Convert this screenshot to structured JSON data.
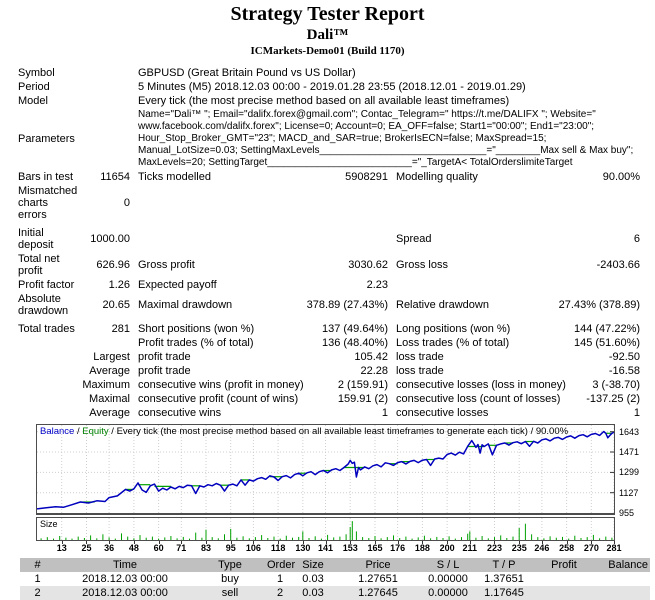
{
  "page": {
    "title": "Strategy Tester Report",
    "ea_name": "Dali™",
    "server": "ICMarkets-Demo01 (Build 1170)"
  },
  "info": {
    "symbol_label": "Symbol",
    "symbol": "GBPUSD (Great Britain Pound vs US Dollar)",
    "period_label": "Period",
    "period": "5 Minutes (M5) 2018.12.03 00:00 - 2019.01.28 23:55 (2018.12.01 - 2019.01.29)",
    "model_label": "Model",
    "model": "Every tick (the most precise method based on all available least timeframes)",
    "parameters_label": "Parameters",
    "parameters": "Name=\"Dali™ \"; Email=\"dalifx.forex@gmail.com\"; Contac_Telegram=\" https://t.me/DALIFX \"; Website=\" www.facebook.com/dalifx.forex\"; License=0; Account=0; EA_OFF=false; Start1=\"00:00\"; End1=\"23:00\"; Hour_Stop_Broker_GMT=\"23\"; MACD_and_SAR=true; BrokerIsECN=false; MaxSpread=15; Manual_LotSize=0.03; SettingMaxLevels______________________________=\"________Max sell & Max buy\"; MaxLevels=20; SettingTarget__________________________=\"_TargetA< TotalOrderslimiteTarget"
  },
  "stats": {
    "bars_label": "Bars in test",
    "bars": "11654",
    "ticks_label": "Ticks modelled",
    "ticks": "5908291",
    "quality_label": "Modelling quality",
    "quality": "90.00%",
    "mismatch_label": "Mismatched charts errors",
    "mismatch": "0",
    "deposit_label": "Initial deposit",
    "deposit": "1000.00",
    "spread_label": "Spread",
    "spread": "6",
    "netprofit_label": "Total net profit",
    "netprofit": "626.96",
    "grossprofit_label": "Gross profit",
    "grossprofit": "3030.62",
    "grossloss_label": "Gross loss",
    "grossloss": "-2403.66",
    "pf_label": "Profit factor",
    "pf": "1.26",
    "ep_label": "Expected payoff",
    "ep": "2.23",
    "absdd_label": "Absolute drawdown",
    "absdd": "20.65",
    "maxdd_label": "Maximal drawdown",
    "maxdd": "378.89 (27.43%)",
    "reldd_label": "Relative drawdown",
    "reldd": "27.43% (378.89)",
    "trades_label": "Total trades",
    "trades": "281",
    "short_label": "Short positions (won %)",
    "short": "137 (49.64%)",
    "long_label": "Long positions (won %)",
    "long": "144 (47.22%)",
    "ptrades_label": "Profit trades (% of total)",
    "ptrades": "136 (48.40%)",
    "ltrades_label": "Loss trades (% of total)",
    "ltrades": "145 (51.60%)",
    "largest_label": "Largest",
    "largest_profit_label": "profit trade",
    "largest_profit": "105.42",
    "largest_loss_label": "loss trade",
    "largest_loss": "-92.50",
    "avg_label": "Average",
    "avg_profit_label": "profit trade",
    "avg_profit": "22.28",
    "avg_loss_label": "loss trade",
    "avg_loss": "-16.58",
    "maximum_label": "Maximum",
    "maxwins_label": "consecutive wins (profit in money)",
    "maxwins": "2 (159.91)",
    "maxlosses_label": "consecutive losses (loss in money)",
    "maxlosses": "3 (-38.70)",
    "maximal_label": "Maximal",
    "maxprofit_label": "consecutive profit (count of wins)",
    "maxprofit": "159.91 (2)",
    "maxloss_label": "consecutive loss (count of losses)",
    "maxloss": "-137.25 (2)",
    "avgcw_label": "Average",
    "avgwins_label": "consecutive wins",
    "avgwins": "1",
    "avglosses_label": "consecutive losses",
    "avglosses": "1"
  },
  "chart_data": {
    "type": "line",
    "title": "Balance / Equity / Every tick (the most precise method based on all available least timeframes to generate each tick) / 90.00%",
    "legend": {
      "balance": "Balance",
      "sep1": " / ",
      "equity": "Equity",
      "rest": " / Every tick (the most precise method based on all available least timeframes to generate each tick) / 90.00%"
    },
    "xlim": [
      1,
      281
    ],
    "ylim": [
      955,
      1700
    ],
    "x_ticks": [
      13,
      25,
      36,
      48,
      60,
      71,
      83,
      95,
      106,
      118,
      130,
      141,
      153,
      165,
      176,
      188,
      200,
      211,
      223,
      235,
      246,
      258,
      270,
      281
    ],
    "y_ticks": [
      955,
      1127,
      1299,
      1471,
      1643
    ],
    "grid": true,
    "legend_position": "top-left",
    "series": [
      {
        "name": "Balance",
        "color": "#0000be"
      },
      {
        "name": "Equity",
        "color": "#00a000"
      }
    ],
    "balance_series": {
      "x": [
        1,
        5,
        10,
        14,
        18,
        22,
        26,
        30,
        34,
        36,
        40,
        44,
        46,
        48,
        50,
        52,
        54,
        56,
        58,
        60,
        62,
        64,
        66,
        68,
        70,
        72,
        74,
        76,
        78,
        80,
        82,
        84,
        86,
        88,
        90,
        92,
        94,
        96,
        98,
        100,
        102,
        104,
        106,
        108,
        110,
        112,
        114,
        116,
        118,
        120,
        122,
        124,
        126,
        128,
        130,
        132,
        134,
        136,
        138,
        140,
        142,
        144,
        146,
        148,
        150,
        152,
        153,
        154,
        155,
        156,
        157,
        158,
        160,
        162,
        164,
        166,
        168,
        170,
        172,
        174,
        176,
        178,
        180,
        182,
        184,
        186,
        188,
        190,
        192,
        194,
        196,
        198,
        200,
        202,
        204,
        206,
        208,
        210,
        211,
        212,
        213,
        214,
        215,
        216,
        217,
        218,
        220,
        222,
        224,
        226,
        228,
        230,
        232,
        234,
        236,
        238,
        240,
        242,
        244,
        246,
        248,
        250,
        252,
        254,
        256,
        258,
        260,
        262,
        264,
        266,
        268,
        270,
        272,
        274,
        276,
        277,
        278,
        279,
        280,
        281
      ],
      "y": [
        990,
        998,
        1008,
        1004,
        1025,
        1048,
        1040,
        1058,
        1052,
        1085,
        1100,
        1155,
        1140,
        1160,
        1210,
        1150,
        1130,
        1185,
        1200,
        1140,
        1165,
        1150,
        1175,
        1160,
        1180,
        1170,
        1190,
        1185,
        1120,
        1185,
        1175,
        1195,
        1185,
        1205,
        1190,
        1140,
        1190,
        1200,
        1185,
        1235,
        1190,
        1235,
        1225,
        1245,
        1255,
        1240,
        1270,
        1260,
        1230,
        1262,
        1272,
        1252,
        1280,
        1292,
        1270,
        1295,
        1305,
        1280,
        1305,
        1315,
        1295,
        1320,
        1330,
        1315,
        1340,
        1370,
        1400,
        1375,
        1385,
        1260,
        1340,
        1320,
        1345,
        1330,
        1355,
        1365,
        1345,
        1380,
        1372,
        1358,
        1382,
        1390,
        1370,
        1392,
        1400,
        1382,
        1402,
        1408,
        1358,
        1412,
        1420,
        1412,
        1450,
        1462,
        1445,
        1470,
        1455,
        1520,
        1545,
        1568,
        1540,
        1510,
        1535,
        1462,
        1532,
        1518,
        1540,
        1448,
        1528,
        1540,
        1548,
        1530,
        1550,
        1558,
        1542,
        1560,
        1520,
        1562,
        1548,
        1575,
        1582,
        1565,
        1588,
        1595,
        1578,
        1598,
        1608,
        1588,
        1610,
        1618,
        1600,
        1620,
        1628,
        1612,
        1645,
        1630,
        1592,
        1612,
        1630,
        1638
      ]
    },
    "equity_segments": [
      [
        22,
        29,
        1048
      ],
      [
        44,
        48,
        1155
      ],
      [
        50,
        56,
        1195
      ],
      [
        58,
        66,
        1180
      ],
      [
        76,
        80,
        1185
      ],
      [
        90,
        94,
        1190
      ],
      [
        100,
        104,
        1235
      ],
      [
        114,
        120,
        1262
      ],
      [
        128,
        132,
        1292
      ],
      [
        140,
        144,
        1315
      ],
      [
        150,
        160,
        1340
      ],
      [
        172,
        176,
        1372
      ],
      [
        178,
        182,
        1390
      ],
      [
        190,
        194,
        1408
      ],
      [
        210,
        218,
        1518
      ],
      [
        220,
        224,
        1528
      ],
      [
        228,
        232,
        1548
      ],
      [
        238,
        242,
        1560
      ],
      [
        277,
        280,
        1630
      ]
    ],
    "size_panel": {
      "label": "Size",
      "max": 0.7,
      "bars": [
        [
          3,
          0.06
        ],
        [
          6,
          0.1
        ],
        [
          9,
          0.05
        ],
        [
          12,
          0.14
        ],
        [
          15,
          0.08
        ],
        [
          18,
          0.05
        ],
        [
          21,
          0.12
        ],
        [
          24,
          0.07
        ],
        [
          27,
          0.16
        ],
        [
          30,
          0.06
        ],
        [
          33,
          0.2
        ],
        [
          36,
          0.09
        ],
        [
          39,
          0.05
        ],
        [
          42,
          0.23
        ],
        [
          45,
          0.12
        ],
        [
          48,
          0.06
        ],
        [
          51,
          0.17
        ],
        [
          54,
          0.08
        ],
        [
          57,
          0.12
        ],
        [
          60,
          0.05
        ],
        [
          63,
          0.09
        ],
        [
          66,
          0.14
        ],
        [
          69,
          0.06
        ],
        [
          72,
          0.11
        ],
        [
          75,
          0.05
        ],
        [
          78,
          0.26
        ],
        [
          81,
          0.08
        ],
        [
          83,
          0.36
        ],
        [
          86,
          0.1
        ],
        [
          89,
          0.06
        ],
        [
          92,
          0.2
        ],
        [
          95,
          0.39
        ],
        [
          98,
          0.08
        ],
        [
          101,
          0.13
        ],
        [
          104,
          0.06
        ],
        [
          107,
          0.1
        ],
        [
          110,
          0.17
        ],
        [
          113,
          0.07
        ],
        [
          116,
          0.12
        ],
        [
          119,
          0.05
        ],
        [
          122,
          0.15
        ],
        [
          125,
          0.08
        ],
        [
          128,
          0.11
        ],
        [
          130,
          0.3
        ],
        [
          133,
          0.07
        ],
        [
          136,
          0.13
        ],
        [
          139,
          0.05
        ],
        [
          142,
          0.18
        ],
        [
          145,
          0.09
        ],
        [
          148,
          0.12
        ],
        [
          151,
          0.2
        ],
        [
          153,
          0.45
        ],
        [
          154,
          0.66
        ],
        [
          156,
          0.3
        ],
        [
          159,
          0.1
        ],
        [
          162,
          0.07
        ],
        [
          165,
          0.14
        ],
        [
          168,
          0.06
        ],
        [
          171,
          0.1
        ],
        [
          174,
          0.16
        ],
        [
          177,
          0.07
        ],
        [
          180,
          0.12
        ],
        [
          183,
          0.05
        ],
        [
          186,
          0.09
        ],
        [
          189,
          0.15
        ],
        [
          192,
          0.06
        ],
        [
          195,
          0.11
        ],
        [
          198,
          0.07
        ],
        [
          201,
          0.13
        ],
        [
          204,
          0.05
        ],
        [
          207,
          0.1
        ],
        [
          210,
          0.22
        ],
        [
          211,
          0.3
        ],
        [
          214,
          0.08
        ],
        [
          217,
          0.14
        ],
        [
          220,
          0.06
        ],
        [
          223,
          0.1
        ],
        [
          226,
          0.16
        ],
        [
          229,
          0.07
        ],
        [
          232,
          0.12
        ],
        [
          235,
          0.42
        ],
        [
          238,
          0.57
        ],
        [
          241,
          0.2
        ],
        [
          244,
          0.1
        ],
        [
          247,
          0.06
        ],
        [
          250,
          0.13
        ],
        [
          253,
          0.08
        ],
        [
          256,
          0.11
        ],
        [
          259,
          0.05
        ],
        [
          262,
          0.15
        ],
        [
          265,
          0.07
        ],
        [
          268,
          0.1
        ],
        [
          271,
          0.18
        ],
        [
          274,
          0.06
        ],
        [
          277,
          0.12
        ],
        [
          280,
          0.08
        ]
      ]
    },
    "colors": {
      "balance": "#0000be",
      "equity": "#00a000",
      "size_bars": "#00a000",
      "grid": "#cfcfcf",
      "frame": "#4d4d4d"
    }
  },
  "trade_table": {
    "headers": [
      "#",
      "Time",
      "Type",
      "Order",
      "Size",
      "Price",
      "S / L",
      "T / P",
      "Profit",
      "Balance"
    ],
    "rows": [
      [
        "1",
        "2018.12.03 00:00",
        "buy",
        "1",
        "0.03",
        "1.27651",
        "0.00000",
        "1.37651",
        "",
        ""
      ],
      [
        "2",
        "2018.12.03 00:00",
        "sell",
        "2",
        "0.03",
        "1.27645",
        "0.00000",
        "1.17645",
        "",
        ""
      ]
    ]
  }
}
